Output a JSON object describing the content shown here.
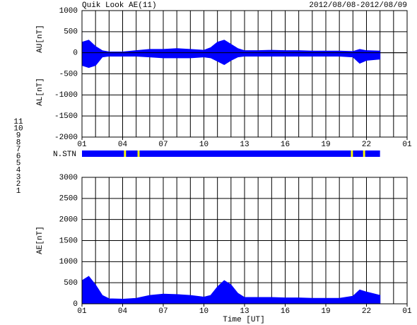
{
  "chart_data": [
    {
      "type": "area",
      "title": "Quik Look AE(11)",
      "subtitle": "2012/08/08-2012/08/09",
      "x": [
        0,
        0.5,
        1,
        1.5,
        2,
        3,
        4,
        5,
        6,
        7,
        8,
        9,
        9.5,
        10,
        10.5,
        11,
        11.5,
        12,
        13,
        14,
        15,
        16,
        17,
        18,
        19,
        20,
        20.5,
        21,
        22
      ],
      "series": [
        {
          "name": "AU[nT]",
          "color": "#0000ff",
          "values": [
            250,
            300,
            150,
            50,
            20,
            20,
            50,
            80,
            80,
            100,
            80,
            60,
            120,
            250,
            300,
            200,
            100,
            50,
            50,
            60,
            50,
            50,
            40,
            40,
            40,
            30,
            80,
            50,
            40
          ]
        },
        {
          "name": "AL[nT]",
          "color": "#0000ff",
          "values": [
            -300,
            -350,
            -300,
            -100,
            -80,
            -80,
            -80,
            -100,
            -120,
            -120,
            -120,
            -100,
            -120,
            -200,
            -280,
            -180,
            -100,
            -80,
            -80,
            -80,
            -80,
            -80,
            -80,
            -80,
            -80,
            -100,
            -250,
            -180,
            -150
          ]
        }
      ],
      "xlim": [
        0,
        24
      ],
      "xticks": [
        {
          "value": 0,
          "label": "01"
        },
        {
          "value": 3,
          "label": "04"
        },
        {
          "value": 6,
          "label": "07"
        },
        {
          "value": 9,
          "label": "10"
        },
        {
          "value": 12,
          "label": "13"
        },
        {
          "value": 15,
          "label": "16"
        },
        {
          "value": 18,
          "label": "19"
        },
        {
          "value": 21,
          "label": "22"
        },
        {
          "value": 24,
          "label": "01"
        }
      ],
      "xgrid": [
        1,
        2,
        3,
        4,
        5,
        6,
        7,
        8,
        9,
        10,
        11,
        12,
        13,
        14,
        15,
        16,
        17,
        18,
        19,
        20,
        21,
        22,
        23
      ],
      "ylim": [
        -2000,
        1000
      ],
      "yticks": [
        1000,
        500,
        0,
        -500,
        -1000,
        -1500,
        -2000
      ],
      "grid": true
    },
    {
      "type": "strip",
      "label": "N.STN",
      "xlim": [
        0,
        24
      ],
      "segments": [
        {
          "start": 0,
          "end": 22,
          "color": "#0000ff"
        },
        {
          "start": 3.1,
          "end": 3.25,
          "color": "#ffff00"
        },
        {
          "start": 4.1,
          "end": 4.25,
          "color": "#ffff00"
        },
        {
          "start": 19.85,
          "end": 20.0,
          "color": "#ffff00"
        },
        {
          "start": 20.75,
          "end": 20.9,
          "color": "#ffff00"
        }
      ],
      "legend": [
        {
          "label": "11",
          "color": "#00d8d8"
        },
        {
          "label": "10",
          "color": "#e000e0"
        },
        {
          "label": "9",
          "color": "#2020c0"
        },
        {
          "label": "8",
          "color": "#e8e890"
        },
        {
          "label": "7",
          "color": "#80c040"
        },
        {
          "label": "6",
          "color": "#e02020"
        },
        {
          "label": "5",
          "color": "#b0b0b0"
        },
        {
          "label": "4",
          "color": "#c8c8c8"
        },
        {
          "label": "3",
          "color": "#20a0a0"
        },
        {
          "label": "2",
          "color": "#8020a0"
        },
        {
          "label": "1",
          "color": "#2020d0"
        }
      ]
    },
    {
      "type": "area",
      "xlabel": "Time [UT]",
      "x": [
        0,
        0.5,
        1,
        1.5,
        2,
        3,
        4,
        5,
        6,
        7,
        8,
        9,
        9.5,
        10,
        10.5,
        11,
        11.5,
        12,
        13,
        14,
        15,
        16,
        17,
        18,
        19,
        20,
        20.5,
        21,
        22
      ],
      "series": [
        {
          "name": "AE[nT]",
          "color": "#0000ff",
          "values": [
            550,
            650,
            450,
            200,
            120,
            110,
            130,
            200,
            230,
            220,
            200,
            160,
            200,
            400,
            550,
            450,
            250,
            150,
            150,
            150,
            140,
            140,
            130,
            130,
            130,
            180,
            330,
            280,
            200
          ]
        }
      ],
      "xlim": [
        0,
        24
      ],
      "xticks": [
        {
          "value": 0,
          "label": "01"
        },
        {
          "value": 3,
          "label": "04"
        },
        {
          "value": 6,
          "label": "07"
        },
        {
          "value": 9,
          "label": "10"
        },
        {
          "value": 12,
          "label": "13"
        },
        {
          "value": 15,
          "label": "16"
        },
        {
          "value": 18,
          "label": "19"
        },
        {
          "value": 21,
          "label": "22"
        },
        {
          "value": 24,
          "label": "01"
        }
      ],
      "xgrid": [
        1,
        2,
        3,
        4,
        5,
        6,
        7,
        8,
        9,
        10,
        11,
        12,
        13,
        14,
        15,
        16,
        17,
        18,
        19,
        20,
        21,
        22,
        23
      ],
      "ylim": [
        0,
        3000
      ],
      "yticks": [
        0,
        500,
        1000,
        1500,
        2000,
        2500,
        3000
      ],
      "grid": true
    }
  ]
}
